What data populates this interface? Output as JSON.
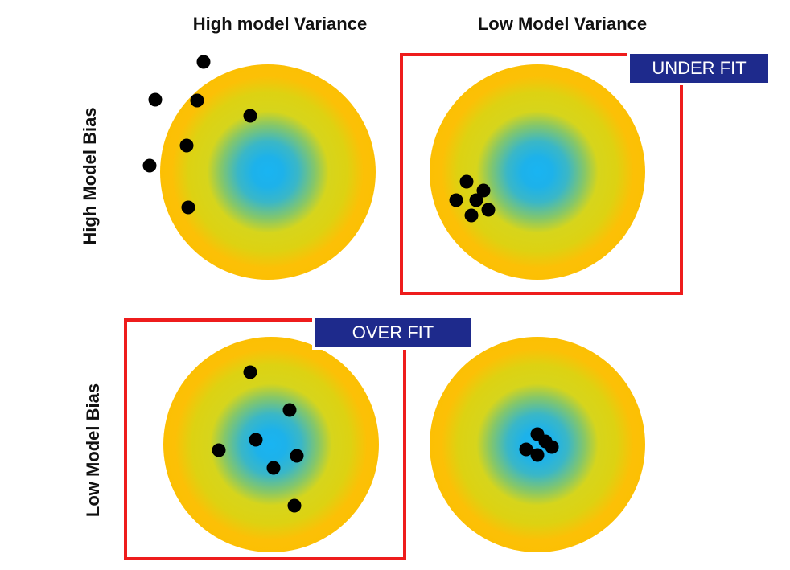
{
  "columns": {
    "high_variance": "High model Variance",
    "low_variance": "Low Model Variance"
  },
  "rows": {
    "high_bias": "High Model Bias",
    "low_bias": "Low Model Bias"
  },
  "labels": {
    "under_fit": "UNDER FIT",
    "over_fit": "OVER FIT"
  },
  "colors": {
    "bullseye_center": "#19b4f2",
    "middle_ring": "#d6d51c",
    "outer_ring": "#fdbe00",
    "frame": "#ee1c1c",
    "label_background": "#1e2a8c",
    "label_text": "#ffffff",
    "dot": "#000000"
  }
}
